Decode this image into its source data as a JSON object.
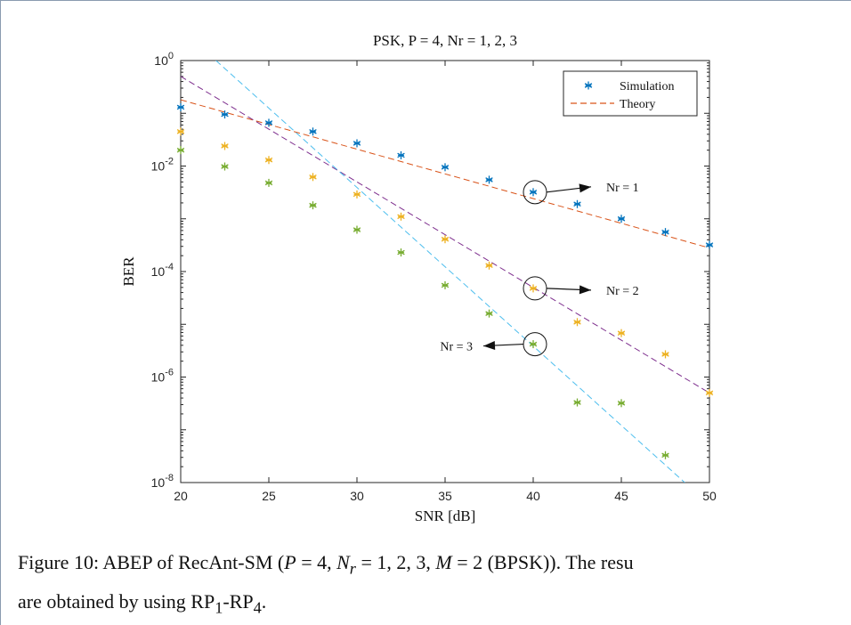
{
  "chart_data": {
    "type": "scatter",
    "title": "PSK, P = 4, Nr = 1, 2, 3",
    "xlabel": "SNR [dB]",
    "ylabel": "BER",
    "xlim": [
      20,
      50
    ],
    "ylim": [
      1e-08,
      1
    ],
    "yscale": "log",
    "xticks": [
      "20",
      "25",
      "30",
      "35",
      "40",
      "45",
      "50"
    ],
    "yticks": [
      {
        "base": "10",
        "exp": "0",
        "value": 1
      },
      {
        "base": "10",
        "exp": "-2",
        "value": 0.01
      },
      {
        "base": "10",
        "exp": "-4",
        "value": 0.0001
      },
      {
        "base": "10",
        "exp": "-6",
        "value": 1e-06
      },
      {
        "base": "10",
        "exp": "-8",
        "value": 1e-08
      }
    ],
    "grid": false,
    "legend": {
      "position": "top-right",
      "entries": [
        "Simulation",
        "Theory"
      ]
    },
    "x": [
      20,
      22.5,
      25,
      27.5,
      30,
      32.5,
      35,
      37.5,
      40,
      42.5,
      45,
      47.5,
      50
    ],
    "series": [
      {
        "color": "#0072BD",
        "simulation": [
          0.13,
          0.095,
          0.066,
          0.045,
          0.027,
          0.016,
          0.0095,
          0.0055,
          0.0032,
          0.0019,
          0.001,
          0.00056,
          0.00032
        ],
        "theory_endpoints": [
          [
            20,
            0.18
          ],
          [
            50,
            0.00028
          ]
        ],
        "theory_color": "#D95319"
      },
      {
        "color": "#EDB120",
        "simulation": [
          0.045,
          0.024,
          0.013,
          0.0062,
          0.0029,
          0.0011,
          0.00041,
          0.00013,
          4.8e-05,
          1.1e-05,
          6.8e-06,
          2.7e-06,
          5e-07
        ],
        "theory_endpoints": [
          [
            20,
            0.5
          ],
          [
            50,
            5e-07
          ]
        ],
        "theory_color": "#7E2F8E"
      },
      {
        "color": "#77AC30",
        "simulation": [
          0.02,
          0.0098,
          0.0048,
          0.0018,
          0.00062,
          0.00023,
          5.5e-05,
          1.6e-05,
          4.2e-06,
          3.3e-07,
          3.2e-07,
          3.3e-08,
          null
        ],
        "theory_endpoints": [
          [
            22,
            1.0
          ],
          [
            48.6,
            1e-08
          ]
        ],
        "theory_color": "#4DBEEE"
      }
    ],
    "annotations": [
      {
        "text": "Nr = 1",
        "circle_at": [
          40,
          0.0032
        ],
        "arrow": "right"
      },
      {
        "text": "Nr = 2",
        "circle_at": [
          40,
          4.8e-05
        ],
        "arrow": "right"
      },
      {
        "text": "Nr = 3",
        "circle_at": [
          40,
          4.2e-06
        ],
        "arrow": "left"
      }
    ]
  },
  "caption": {
    "prefix": "Figure 10: ABEP of RecAnt-SM (",
    "p_var": "P",
    "p_val": " = 4, ",
    "n_var": "N",
    "n_sub": "r",
    "n_val": " = 1, 2, 3, ",
    "m_var": "M",
    "m_val": " = 2 (BPSK)). The resu",
    "line2_prefix": "are obtained by using RP",
    "line2_sub1": "1",
    "line2_mid": "-RP",
    "line2_sub2": "4",
    "line2_end": "."
  }
}
